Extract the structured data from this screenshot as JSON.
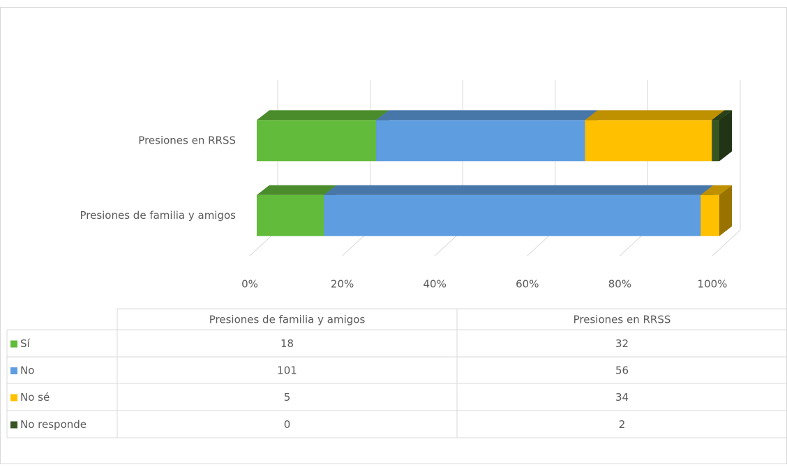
{
  "chart_data": {
    "type": "bar",
    "orientation": "horizontal",
    "stacking": "percent",
    "categories": [
      "Presiones de familia y amigos",
      "Presiones en RRSS"
    ],
    "series": [
      {
        "name": "Sí",
        "color": "#62bb3a",
        "values": [
          18,
          32
        ]
      },
      {
        "name": "No",
        "color": "#5e9de0",
        "values": [
          101,
          56
        ]
      },
      {
        "name": "No sé",
        "color": "#ffc000",
        "values": [
          5,
          34
        ]
      },
      {
        "name": "No responde",
        "color": "#375623",
        "values": [
          0,
          2
        ]
      }
    ],
    "xlim": [
      0,
      100
    ],
    "xticks": [
      {
        "value": 0,
        "label": "0%"
      },
      {
        "value": 20,
        "label": "20%"
      },
      {
        "value": 40,
        "label": "40%"
      },
      {
        "value": 60,
        "label": "60%"
      },
      {
        "value": 80,
        "label": "80%"
      },
      {
        "value": 100,
        "label": "100%"
      }
    ],
    "grid": true,
    "data_table": true
  }
}
